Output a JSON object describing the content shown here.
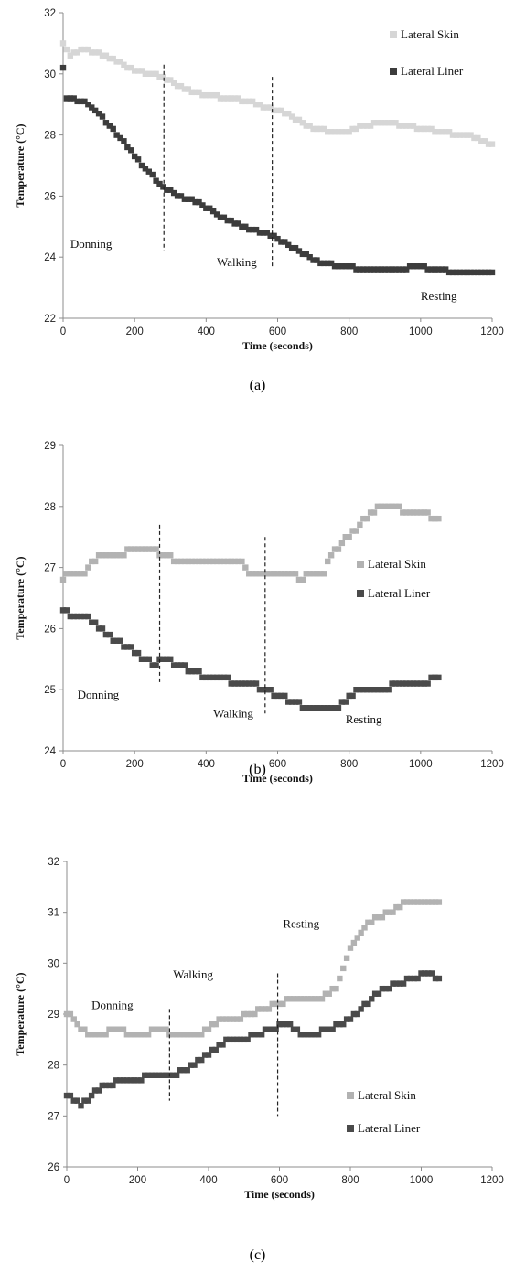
{
  "colors": {
    "skin_a": "#d6d6d6",
    "liner_a": "#3c3c3c",
    "skin": "#b2b2b2",
    "liner": "#4a4a4a",
    "axis": "#8c8c8c"
  },
  "chart_data": [
    {
      "id": "a",
      "type": "scatter",
      "caption": "(a)",
      "xlabel": "Time (seconds)",
      "ylabel": "Temperature (°C)",
      "xlim": [
        0,
        1200
      ],
      "ylim": [
        22,
        32
      ],
      "xticks": [
        0,
        200,
        400,
        600,
        800,
        1000,
        1200
      ],
      "yticks": [
        22,
        24,
        26,
        28,
        30,
        32
      ],
      "legend_position": "top-right",
      "annotations": [
        {
          "text": "Donning",
          "x": 20,
          "y": 24.3
        },
        {
          "text": "Walking",
          "x": 430,
          "y": 23.7
        },
        {
          "text": "Resting",
          "x": 1000,
          "y": 22.6
        }
      ],
      "phase_lines": [
        {
          "x": 282,
          "y0": 24.2,
          "y1": 30.3
        },
        {
          "x": 585,
          "y0": 23.7,
          "y1": 29.9
        }
      ],
      "series": [
        {
          "name": "Lateral Skin",
          "color_key": "skin_a",
          "points": [
            [
              0,
              31.0
            ],
            [
              20,
              30.6
            ],
            [
              60,
              30.8
            ],
            [
              120,
              30.6
            ],
            [
              200,
              30.1
            ],
            [
              280,
              29.9
            ],
            [
              340,
              29.5
            ],
            [
              400,
              29.3
            ],
            [
              460,
              29.2
            ],
            [
              520,
              29.1
            ],
            [
              560,
              28.9
            ],
            [
              600,
              28.8
            ],
            [
              640,
              28.6
            ],
            [
              700,
              28.2
            ],
            [
              760,
              28.1
            ],
            [
              800,
              28.1
            ],
            [
              840,
              28.3
            ],
            [
              900,
              28.4
            ],
            [
              960,
              28.3
            ],
            [
              1000,
              28.2
            ],
            [
              1060,
              28.1
            ],
            [
              1100,
              28.0
            ],
            [
              1140,
              28.0
            ],
            [
              1170,
              27.8
            ],
            [
              1200,
              27.7
            ]
          ]
        },
        {
          "name": "Lateral Liner",
          "color_key": "liner_a",
          "points": [
            [
              0,
              30.2
            ],
            [
              10,
              29.2
            ],
            [
              60,
              29.1
            ],
            [
              100,
              28.7
            ],
            [
              160,
              27.9
            ],
            [
              220,
              27.0
            ],
            [
              280,
              26.3
            ],
            [
              320,
              26.0
            ],
            [
              380,
              25.8
            ],
            [
              440,
              25.3
            ],
            [
              500,
              25.0
            ],
            [
              560,
              24.8
            ],
            [
              600,
              24.6
            ],
            [
              660,
              24.2
            ],
            [
              720,
              23.8
            ],
            [
              780,
              23.7
            ],
            [
              840,
              23.6
            ],
            [
              900,
              23.6
            ],
            [
              960,
              23.6
            ],
            [
              980,
              23.7
            ],
            [
              1040,
              23.6
            ],
            [
              1100,
              23.5
            ],
            [
              1140,
              23.5
            ],
            [
              1180,
              23.5
            ],
            [
              1200,
              23.5
            ]
          ]
        }
      ]
    },
    {
      "id": "b",
      "type": "scatter",
      "caption": "(b)",
      "xlabel": "Time (seconds)",
      "ylabel": "Temperature (°C)",
      "xlim": [
        0,
        1200
      ],
      "ylim": [
        24,
        29
      ],
      "xticks": [
        0,
        200,
        400,
        600,
        800,
        1000,
        1200
      ],
      "yticks": [
        24,
        25,
        26,
        27,
        28,
        29
      ],
      "legend_position": "right",
      "annotations": [
        {
          "text": "Donning",
          "x": 40,
          "y": 24.85
        },
        {
          "text": "Walking",
          "x": 420,
          "y": 24.55
        },
        {
          "text": "Resting",
          "x": 790,
          "y": 24.45
        }
      ],
      "phase_lines": [
        {
          "x": 270,
          "y0": 25.1,
          "y1": 27.7
        },
        {
          "x": 565,
          "y0": 24.6,
          "y1": 27.5
        }
      ],
      "series": [
        {
          "name": "Lateral Skin",
          "color_key": "skin",
          "points": [
            [
              0,
              26.8
            ],
            [
              20,
              26.9
            ],
            [
              60,
              26.9
            ],
            [
              80,
              27.1
            ],
            [
              120,
              27.2
            ],
            [
              160,
              27.2
            ],
            [
              200,
              27.3
            ],
            [
              240,
              27.3
            ],
            [
              280,
              27.2
            ],
            [
              320,
              27.1
            ],
            [
              380,
              27.1
            ],
            [
              440,
              27.1
            ],
            [
              500,
              27.1
            ],
            [
              520,
              26.9
            ],
            [
              600,
              26.9
            ],
            [
              640,
              26.9
            ],
            [
              660,
              26.8
            ],
            [
              700,
              26.9
            ],
            [
              730,
              26.9
            ],
            [
              740,
              27.1
            ],
            [
              780,
              27.4
            ],
            [
              820,
              27.6
            ],
            [
              860,
              27.9
            ],
            [
              900,
              28.0
            ],
            [
              920,
              28.0
            ],
            [
              960,
              27.9
            ],
            [
              1000,
              27.9
            ],
            [
              1040,
              27.8
            ],
            [
              1050,
              27.8
            ]
          ]
        },
        {
          "name": "Lateral Liner",
          "color_key": "liner",
          "points": [
            [
              0,
              26.3
            ],
            [
              30,
              26.2
            ],
            [
              60,
              26.2
            ],
            [
              80,
              26.1
            ],
            [
              120,
              25.9
            ],
            [
              140,
              25.8
            ],
            [
              180,
              25.7
            ],
            [
              220,
              25.5
            ],
            [
              260,
              25.4
            ],
            [
              280,
              25.5
            ],
            [
              320,
              25.4
            ],
            [
              360,
              25.3
            ],
            [
              400,
              25.2
            ],
            [
              440,
              25.2
            ],
            [
              480,
              25.1
            ],
            [
              520,
              25.1
            ],
            [
              560,
              25.0
            ],
            [
              600,
              24.9
            ],
            [
              640,
              24.8
            ],
            [
              680,
              24.7
            ],
            [
              720,
              24.7
            ],
            [
              760,
              24.7
            ],
            [
              790,
              24.8
            ],
            [
              820,
              25.0
            ],
            [
              860,
              25.0
            ],
            [
              900,
              25.0
            ],
            [
              940,
              25.1
            ],
            [
              980,
              25.1
            ],
            [
              1000,
              25.1
            ],
            [
              1050,
              25.2
            ]
          ]
        }
      ]
    },
    {
      "id": "c",
      "type": "scatter",
      "caption": "(c)",
      "xlabel": "Time (seconds)",
      "ylabel": "Temperature (°C)",
      "xlim": [
        0,
        1200
      ],
      "ylim": [
        26,
        32
      ],
      "xticks": [
        0,
        200,
        400,
        600,
        800,
        1000,
        1200
      ],
      "yticks": [
        26,
        27,
        28,
        29,
        30,
        31,
        32
      ],
      "legend_position": "bottom-right",
      "annotations": [
        {
          "text": "Donning",
          "x": 70,
          "y": 29.1
        },
        {
          "text": "Walking",
          "x": 300,
          "y": 29.7
        },
        {
          "text": "Resting",
          "x": 610,
          "y": 30.7
        }
      ],
      "phase_lines": [
        {
          "x": 290,
          "y0": 27.3,
          "y1": 29.1
        },
        {
          "x": 595,
          "y0": 27.0,
          "y1": 29.8
        }
      ],
      "series": [
        {
          "name": "Lateral Skin",
          "color_key": "skin",
          "points": [
            [
              0,
              29.0
            ],
            [
              20,
              28.9
            ],
            [
              40,
              28.7
            ],
            [
              60,
              28.6
            ],
            [
              100,
              28.6
            ],
            [
              140,
              28.7
            ],
            [
              180,
              28.6
            ],
            [
              220,
              28.6
            ],
            [
              260,
              28.7
            ],
            [
              300,
              28.6
            ],
            [
              340,
              28.6
            ],
            [
              380,
              28.6
            ],
            [
              400,
              28.7
            ],
            [
              440,
              28.9
            ],
            [
              480,
              28.9
            ],
            [
              520,
              29.0
            ],
            [
              560,
              29.1
            ],
            [
              600,
              29.2
            ],
            [
              640,
              29.3
            ],
            [
              680,
              29.3
            ],
            [
              720,
              29.3
            ],
            [
              760,
              29.5
            ],
            [
              780,
              29.9
            ],
            [
              800,
              30.3
            ],
            [
              840,
              30.7
            ],
            [
              880,
              30.9
            ],
            [
              920,
              31.0
            ],
            [
              960,
              31.2
            ],
            [
              1000,
              31.2
            ],
            [
              1040,
              31.2
            ],
            [
              1050,
              31.2
            ]
          ]
        },
        {
          "name": "Lateral Liner",
          "color_key": "liner",
          "points": [
            [
              0,
              27.4
            ],
            [
              20,
              27.3
            ],
            [
              40,
              27.2
            ],
            [
              60,
              27.3
            ],
            [
              80,
              27.5
            ],
            [
              120,
              27.6
            ],
            [
              160,
              27.7
            ],
            [
              200,
              27.7
            ],
            [
              240,
              27.8
            ],
            [
              280,
              27.8
            ],
            [
              300,
              27.8
            ],
            [
              340,
              27.9
            ],
            [
              380,
              28.1
            ],
            [
              420,
              28.3
            ],
            [
              460,
              28.5
            ],
            [
              500,
              28.5
            ],
            [
              540,
              28.6
            ],
            [
              580,
              28.7
            ],
            [
              620,
              28.8
            ],
            [
              660,
              28.6
            ],
            [
              700,
              28.6
            ],
            [
              740,
              28.7
            ],
            [
              780,
              28.8
            ],
            [
              820,
              29.0
            ],
            [
              860,
              29.3
            ],
            [
              900,
              29.5
            ],
            [
              940,
              29.6
            ],
            [
              980,
              29.7
            ],
            [
              1020,
              29.8
            ],
            [
              1050,
              29.7
            ]
          ]
        }
      ]
    }
  ]
}
